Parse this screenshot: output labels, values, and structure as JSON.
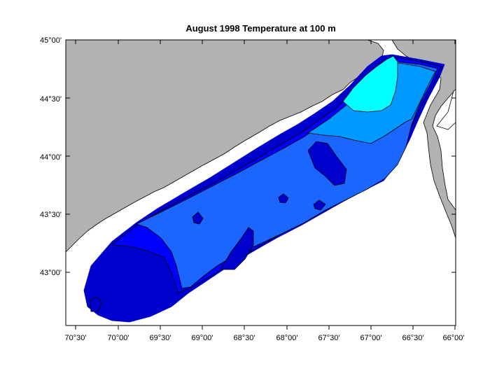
{
  "title": "August 1998  Temperature at 100 m",
  "y_axis": {
    "tick_labels": [
      "45°00'",
      "44°30'",
      "44°00'",
      "43°30'",
      "43°00'"
    ]
  },
  "x_axis": {
    "tick_labels": [
      "70°30'",
      "70°00'",
      "69°30'",
      "69°00'",
      "68°30'",
      "68°00'",
      "67°30'",
      "67°00'",
      "66°30'",
      "66°00'"
    ]
  },
  "colors": {
    "land": "#b2b2b2",
    "water": "#ffffff",
    "band_darkest": "#0000cc",
    "band_dark": "#0000ff",
    "band_mid": "#1a66ff",
    "band_light": "#0099ff",
    "band_lightest": "#00ffff",
    "contour_line": "#000000"
  }
}
